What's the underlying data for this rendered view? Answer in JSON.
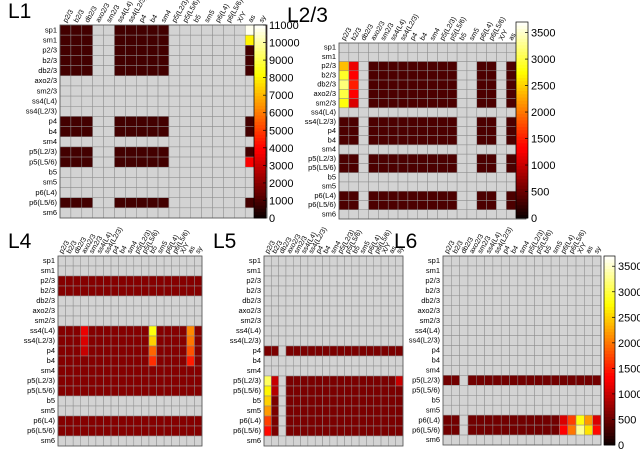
{
  "chart_data": [
    {
      "type": "heatmap",
      "title": "L1",
      "rows": [
        "sp1",
        "sm1",
        "p2/3",
        "b2/3",
        "db2/3",
        "axo2/3",
        "sm2/3",
        "ss4(L4)",
        "ss4(L2/3)",
        "p4",
        "b4",
        "sm4",
        "p5(L2/3)",
        "p5(L5/6)",
        "b5",
        "sm5",
        "p6(L4)",
        "p6(L5/6)",
        "sm6"
      ],
      "columns": [
        "p2/3",
        "b2/3",
        "db2/3",
        "axo2/3",
        "sm2/3",
        "ss4(L4)",
        "ss4(L2/3)",
        "p4",
        "b4",
        "sm4",
        "p5(L2/3)",
        "p5(L5/6)",
        "b5",
        "sm5",
        "p6(L4)",
        "p6(L5/6)",
        "X/Y",
        "as",
        "sy"
      ],
      "colorbar": {
        "min": 0,
        "max": 11000,
        "ticks": [
          0,
          1000,
          2000,
          3000,
          4000,
          5000,
          6000,
          7000,
          8000,
          9000,
          10000,
          11000
        ]
      },
      "active_rows": [
        "sp1",
        "sm1",
        "p2/3",
        "b2/3",
        "db2/3",
        "p4",
        "b4",
        "p5(L2/3)",
        "p5(L5/6)",
        "p6(L5/6)"
      ],
      "active_columns": [
        "p2/3",
        "b2/3",
        "db2/3",
        "ss4(L4)",
        "ss4(L2/3)",
        "p4",
        "b4",
        "sm4",
        "as",
        "sy"
      ],
      "values": [
        {
          "row": "sp1",
          "col": "as",
          "v": 10800
        },
        {
          "row": "sm1",
          "col": "as",
          "v": 8000
        },
        {
          "row": "p5(L5/6)",
          "col": "as",
          "v": 3800
        },
        {
          "row": "sp1",
          "col": "sy",
          "v": 700
        },
        {
          "row": "sm1",
          "col": "sy",
          "v": 1500
        }
      ],
      "base_value": 900
    },
    {
      "type": "heatmap",
      "title": "L2/3",
      "rows": [
        "sp1",
        "sm1",
        "p2/3",
        "b2/3",
        "db2/3",
        "axo2/3",
        "sm2/3",
        "ss4(L4)",
        "ss4(L2/3)",
        "p4",
        "b4",
        "sm4",
        "p5(L2/3)",
        "p5(L5/6)",
        "b5",
        "sm5",
        "p6(L4)",
        "p6(L5/6)",
        "sm6"
      ],
      "columns": [
        "p2/3",
        "b2/3",
        "db2/3",
        "axo2/3",
        "sm2/3",
        "ss4(L4)",
        "ss4(L2/3)",
        "p4",
        "b4",
        "sm4",
        "p5(L2/3)",
        "p5(L5/6)",
        "b5",
        "sm5",
        "p6(L4)",
        "p6(L5/6)",
        "X/Y",
        "as",
        "sy"
      ],
      "colorbar": {
        "min": 0,
        "max": 3700,
        "ticks": [
          0,
          500,
          1000,
          1500,
          2000,
          2500,
          3000,
          3500
        ]
      },
      "active_rows": [
        "p2/3",
        "b2/3",
        "db2/3",
        "axo2/3",
        "sm2/3",
        "ss4(L2/3)",
        "p4",
        "b4",
        "p5(L2/3)",
        "p5(L5/6)",
        "p6(L4)",
        "p6(L5/6)"
      ],
      "active_columns": [
        "p2/3",
        "b2/3",
        "axo2/3",
        "sm2/3",
        "ss4(L4)",
        "ss4(L2/3)",
        "p4",
        "b4",
        "sm4",
        "p5(L2/3)",
        "p5(L5/6)",
        "p6(L4)",
        "p6(L5/6)",
        "as"
      ],
      "values": [
        {
          "row": "p2/3",
          "col": "p2/3",
          "v": 2400
        },
        {
          "row": "b2/3",
          "col": "p2/3",
          "v": 2900
        },
        {
          "row": "db2/3",
          "col": "p2/3",
          "v": 3200
        },
        {
          "row": "axo2/3",
          "col": "p2/3",
          "v": 3000
        },
        {
          "row": "sm2/3",
          "col": "p2/3",
          "v": 2800
        },
        {
          "row": "p2/3",
          "col": "b2/3",
          "v": 1200
        },
        {
          "row": "b2/3",
          "col": "b2/3",
          "v": 1300
        },
        {
          "row": "db2/3",
          "col": "b2/3",
          "v": 1500
        },
        {
          "row": "axo2/3",
          "col": "b2/3",
          "v": 1300
        },
        {
          "row": "sm2/3",
          "col": "b2/3",
          "v": 1100
        }
      ],
      "base_value": 350
    },
    {
      "type": "heatmap",
      "title": "L4",
      "rows": [
        "sp1",
        "sm1",
        "p2/3",
        "b2/3",
        "db2/3",
        "axo2/3",
        "sm2/3",
        "ss4(L4)",
        "ss4(L2/3)",
        "p4",
        "b4",
        "sm4",
        "p5(L2/3)",
        "p5(L5/6)",
        "b5",
        "sm5",
        "p6(L4)",
        "p6(L5/6)",
        "sm6"
      ],
      "columns": [
        "p2/3",
        "b2/3",
        "db2/3",
        "axo2/3",
        "sm2/3",
        "ss4(L4)",
        "ss4(L2/3)",
        "p4",
        "b4",
        "sm4",
        "p5(L2/3)",
        "p5(L5/6)",
        "b5",
        "sm5",
        "p6(L4)",
        "p6(L5/6)",
        "X/Y",
        "as",
        "sy"
      ],
      "colorbar": {
        "min": 0,
        "max": 3700,
        "ticks": [
          0,
          500,
          1000,
          1500,
          2000,
          2500,
          3000,
          3500
        ]
      },
      "active_rows": [
        "p2/3",
        "b2/3",
        "ss4(L4)",
        "ss4(L2/3)",
        "p4",
        "b4",
        "sm4",
        "p5(L2/3)",
        "p5(L5/6)",
        "p6(L4)",
        "p6(L5/6)"
      ],
      "active_columns": [
        "p2/3",
        "b2/3",
        "db2/3",
        "axo2/3",
        "sm2/3",
        "ss4(L4)",
        "ss4(L2/3)",
        "p4",
        "b4",
        "sm4",
        "p5(L2/3)",
        "p5(L5/6)",
        "b5",
        "sm5",
        "p6(L4)",
        "p6(L5/6)",
        "X/Y",
        "as",
        "sy"
      ],
      "values": [
        {
          "row": "ss4(L4)",
          "col": "b5",
          "v": 2800
        },
        {
          "row": "ss4(L2/3)",
          "col": "b5",
          "v": 2500
        },
        {
          "row": "p4",
          "col": "b5",
          "v": 1900
        },
        {
          "row": "b4",
          "col": "b5",
          "v": 1600
        },
        {
          "row": "ss4(L4)",
          "col": "as",
          "v": 2100
        },
        {
          "row": "ss4(L2/3)",
          "col": "as",
          "v": 2000
        },
        {
          "row": "p4",
          "col": "as",
          "v": 1800
        },
        {
          "row": "b4",
          "col": "as",
          "v": 1500
        },
        {
          "row": "ss4(L4)",
          "col": "axo2/3",
          "v": 1200
        },
        {
          "row": "ss4(L2/3)",
          "col": "axo2/3",
          "v": 1100
        },
        {
          "row": "p4",
          "col": "axo2/3",
          "v": 1000
        }
      ],
      "base_value": 650
    },
    {
      "type": "heatmap",
      "title": "L5",
      "rows": [
        "sp1",
        "sm1",
        "p2/3",
        "b2/3",
        "db2/3",
        "axo2/3",
        "sm2/3",
        "ss4(L4)",
        "ss4(L2/3)",
        "p4",
        "b4",
        "sm4",
        "p5(L2/3)",
        "p5(L5/6)",
        "b5",
        "sm5",
        "p6(L4)",
        "p6(L5/6)",
        "sm6"
      ],
      "columns": [
        "p2/3",
        "b2/3",
        "db2/3",
        "axo2/3",
        "sm2/3",
        "ss4(L4)",
        "ss4(L2/3)",
        "p4",
        "b4",
        "sm4",
        "p5(L2/3)",
        "p5(L5/6)",
        "b5",
        "sm5",
        "p6(L4)",
        "p6(L5/6)",
        "X/Y",
        "as",
        "sy"
      ],
      "colorbar": {
        "min": 0,
        "max": 3700,
        "ticks": [
          0,
          500,
          1000,
          1500,
          2000,
          2500,
          3000,
          3500
        ]
      },
      "active_rows": [
        "p4",
        "p5(L2/3)",
        "p5(L5/6)",
        "b5",
        "sm5",
        "p6(L4)",
        "p6(L5/6)"
      ],
      "active_columns": [
        "p2/3",
        "b2/3",
        "axo2/3",
        "sm2/3",
        "ss4(L4)",
        "ss4(L2/3)",
        "p4",
        "b4",
        "sm4",
        "p5(L2/3)",
        "p5(L5/6)",
        "b5",
        "sm5",
        "p6(L4)",
        "p6(L5/6)",
        "X/Y",
        "as",
        "sy"
      ],
      "values": [
        {
          "row": "p5(L2/3)",
          "col": "p2/3",
          "v": 3100
        },
        {
          "row": "p5(L5/6)",
          "col": "p2/3",
          "v": 2700
        },
        {
          "row": "b5",
          "col": "p2/3",
          "v": 2500
        },
        {
          "row": "sm5",
          "col": "p2/3",
          "v": 2200
        },
        {
          "row": "p6(L4)",
          "col": "p2/3",
          "v": 1700
        },
        {
          "row": "p6(L5/6)",
          "col": "p2/3",
          "v": 1400
        },
        {
          "row": "p5(L2/3)",
          "col": "b2/3",
          "v": 1000
        },
        {
          "row": "p5(L5/6)",
          "col": "b2/3",
          "v": 900
        },
        {
          "row": "p5(L2/3)",
          "col": "sy",
          "v": 1000
        }
      ],
      "base_value": 600
    },
    {
      "type": "heatmap",
      "title": "L6",
      "rows": [
        "sp1",
        "sm1",
        "p2/3",
        "b2/3",
        "db2/3",
        "axo2/3",
        "sm2/3",
        "ss4(L4)",
        "ss4(L2/3)",
        "p4",
        "b4",
        "sm4",
        "p5(L2/3)",
        "p5(L5/6)",
        "b5",
        "sm5",
        "p6(L4)",
        "p6(L5/6)",
        "sm6"
      ],
      "columns": [
        "p2/3",
        "b2/3",
        "db2/3",
        "axo2/3",
        "sm2/3",
        "ss4(L4)",
        "ss4(L2/3)",
        "p4",
        "b4",
        "sm4",
        "p5(L2/3)",
        "p5(L5/6)",
        "b5",
        "sm5",
        "p6(L4)",
        "p6(L5/6)",
        "X/Y",
        "as",
        "sy"
      ],
      "colorbar": {
        "min": 0,
        "max": 3700,
        "ticks": [
          0,
          500,
          1000,
          1500,
          2000,
          2500,
          3000,
          3500
        ]
      },
      "active_rows": [
        "p5(L2/3)",
        "p6(L4)",
        "p6(L5/6)"
      ],
      "active_columns": [
        "p2/3",
        "b2/3",
        "axo2/3",
        "sm2/3",
        "ss4(L4)",
        "ss4(L2/3)",
        "p4",
        "b4",
        "sm4",
        "p5(L2/3)",
        "p5(L5/6)",
        "b5",
        "sm5",
        "p6(L4)",
        "p6(L5/6)",
        "X/Y",
        "as",
        "sy"
      ],
      "values": [
        {
          "row": "p6(L4)",
          "col": "X/Y",
          "v": 2800
        },
        {
          "row": "p6(L5/6)",
          "col": "X/Y",
          "v": 3300
        },
        {
          "row": "p6(L4)",
          "col": "as",
          "v": 2200
        },
        {
          "row": "p6(L5/6)",
          "col": "as",
          "v": 2600
        },
        {
          "row": "p6(L4)",
          "col": "p6(L5/6)",
          "v": 1700
        },
        {
          "row": "p6(L5/6)",
          "col": "p6(L5/6)",
          "v": 2000
        },
        {
          "row": "p6(L4)",
          "col": "sy",
          "v": 1100
        },
        {
          "row": "p6(L5/6)",
          "col": "sy",
          "v": 1400
        },
        {
          "row": "p6(L4)",
          "col": "p6(L4)",
          "v": 1100
        },
        {
          "row": "p6(L5/6)",
          "col": "p6(L4)",
          "v": 1300
        }
      ],
      "base_value": 550
    }
  ]
}
